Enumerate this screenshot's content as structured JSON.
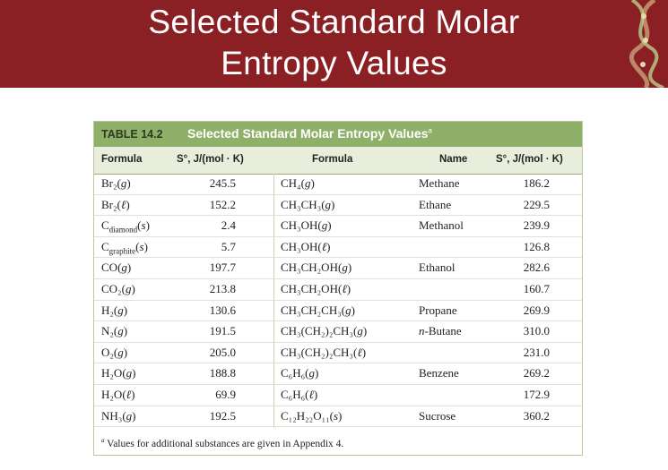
{
  "slide": {
    "title_line1": "Selected Standard Molar",
    "title_line2": "Entropy Values"
  },
  "table": {
    "number": "TABLE 14.2",
    "title": "Selected Standard Molar Entropy Values",
    "title_mark": "a",
    "headers": {
      "formula_left": "Formula",
      "s_left": "S°, J/(mol · K)",
      "formula_right": "Formula",
      "name": "Name",
      "s_right": "S°, J/(mol · K)"
    },
    "left_rows": [
      {
        "formula": "Br₂(g)",
        "s": "245.5"
      },
      {
        "formula": "Br₂(ℓ)",
        "s": "152.2"
      },
      {
        "formula": "C_diamond(s)",
        "s": "2.4"
      },
      {
        "formula": "C_graphite(s)",
        "s": "5.7"
      },
      {
        "formula": "CO(g)",
        "s": "197.7"
      },
      {
        "formula": "CO₂(g)",
        "s": "213.8"
      },
      {
        "formula": "H₂(g)",
        "s": "130.6"
      },
      {
        "formula": "N₂(g)",
        "s": "191.5"
      },
      {
        "formula": "O₂(g)",
        "s": "205.0"
      },
      {
        "formula": "H₂O(g)",
        "s": "188.8"
      },
      {
        "formula": "H₂O(ℓ)",
        "s": "69.9"
      },
      {
        "formula": "NH₃(g)",
        "s": "192.5"
      }
    ],
    "right_rows": [
      {
        "formula": "CH₄(g)",
        "name": "Methane",
        "s": "186.2"
      },
      {
        "formula": "CH₃CH₃(g)",
        "name": "Ethane",
        "s": "229.5"
      },
      {
        "formula": "CH₃OH(g)",
        "name": "Methanol",
        "s": "239.9"
      },
      {
        "formula": "CH₃OH(ℓ)",
        "name": "",
        "s": "126.8"
      },
      {
        "formula": "CH₃CH₂OH(g)",
        "name": "Ethanol",
        "s": "282.6"
      },
      {
        "formula": "CH₃CH₂OH(ℓ)",
        "name": "",
        "s": "160.7"
      },
      {
        "formula": "CH₃CH₂CH₃(g)",
        "name": "Propane",
        "s": "269.9"
      },
      {
        "formula": "CH₃(CH₂)₂CH₃(g)",
        "name": "n-Butane",
        "s": "310.0"
      },
      {
        "formula": "CH₃(CH₂)₂CH₃(ℓ)",
        "name": "",
        "s": "231.0"
      },
      {
        "formula": "C₆H₆(g)",
        "name": "Benzene",
        "s": "269.2"
      },
      {
        "formula": "C₆H₆(ℓ)",
        "name": "",
        "s": "172.9"
      },
      {
        "formula": "C₁₂H₂₂O₁₁(s)",
        "name": "Sucrose",
        "s": "360.2"
      }
    ],
    "footnote_mark": "a",
    "footnote": "Values for additional substances are given in Appendix 4."
  },
  "colors": {
    "banner": "#8a1f24",
    "table_header": "#8fb069",
    "column_header_bg": "#e8eedb"
  }
}
